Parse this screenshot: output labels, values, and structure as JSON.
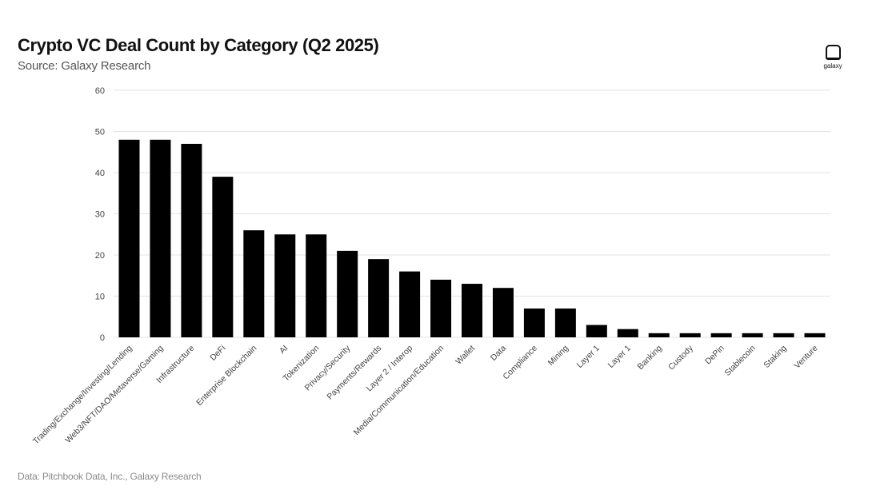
{
  "header": {
    "title": "Crypto VC Deal Count by Category (Q2 2025)",
    "subtitle": "Source: Galaxy Research"
  },
  "footer": {
    "note": "Data: Pitchbook Data, Inc., Galaxy Research"
  },
  "logo": {
    "text": "galaxy",
    "icon": "galaxy-logo-icon"
  },
  "colors": {
    "bar": "#000000",
    "grid": "#e3e3e3",
    "text": "#444444"
  },
  "chart_data": {
    "type": "bar",
    "title": "Crypto VC Deal Count by Category (Q2 2025)",
    "xlabel": "",
    "ylabel": "",
    "ylim": [
      0,
      60
    ],
    "yticks": [
      0,
      10,
      20,
      30,
      40,
      50,
      60
    ],
    "grid": true,
    "legend": "none",
    "categories": [
      "Trading/Exchange/Investing/Lending",
      "Web3/NFT/DAO/Metaverse/Gaming",
      "Infrastructure",
      "DeFi",
      "Enterprise Blockchain",
      "AI",
      "Tokenization",
      "Privacy/Security",
      "Payments/Rewards",
      "Layer 2 / Interop",
      "Media/Communication/Education",
      "Wallet",
      "Data",
      "Compliance",
      "Mining",
      "Layer 1",
      "Layer 1",
      "Banking",
      "Custody",
      "DePin",
      "Stablecoin",
      "Staking",
      "Venture"
    ],
    "values": [
      48,
      48,
      47,
      39,
      26,
      25,
      25,
      21,
      19,
      16,
      14,
      13,
      12,
      7,
      7,
      3,
      2,
      1,
      1,
      1,
      1,
      1,
      1
    ]
  }
}
